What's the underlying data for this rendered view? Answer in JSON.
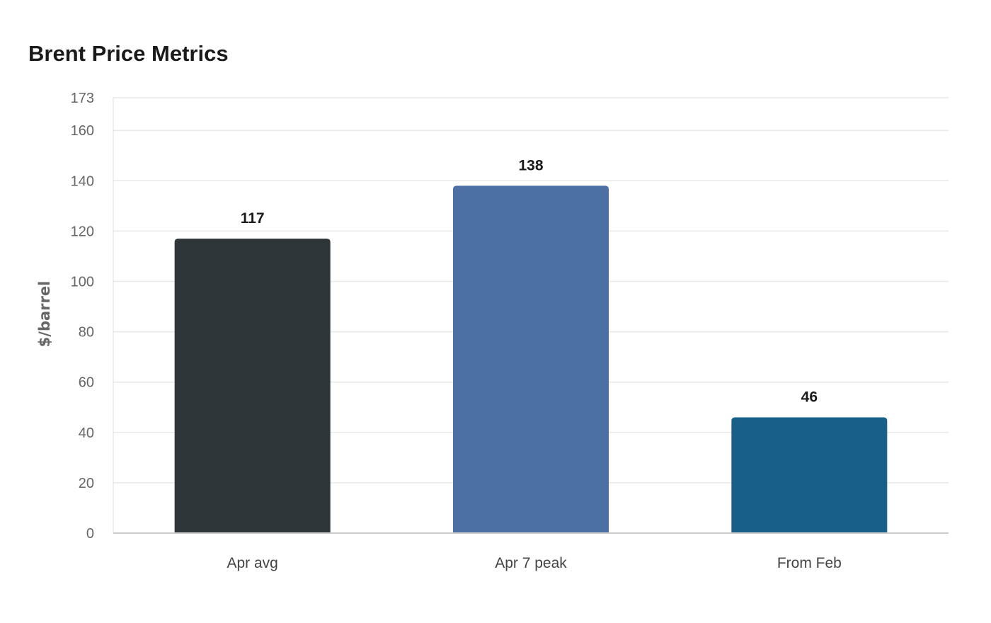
{
  "chart_data": {
    "type": "bar",
    "title": "Brent Price Metrics",
    "xlabel": "",
    "ylabel": "$/barrel",
    "categories": [
      "Apr avg",
      "Apr 7 peak",
      "From Feb"
    ],
    "values": [
      117,
      138,
      46
    ],
    "colors": [
      "#2e3538",
      "#4c6fa4",
      "#186089"
    ],
    "ylim": [
      0,
      173
    ],
    "yticks": [
      0,
      20,
      40,
      60,
      80,
      100,
      120,
      140,
      160,
      173
    ],
    "grid": true,
    "legend": "none"
  }
}
